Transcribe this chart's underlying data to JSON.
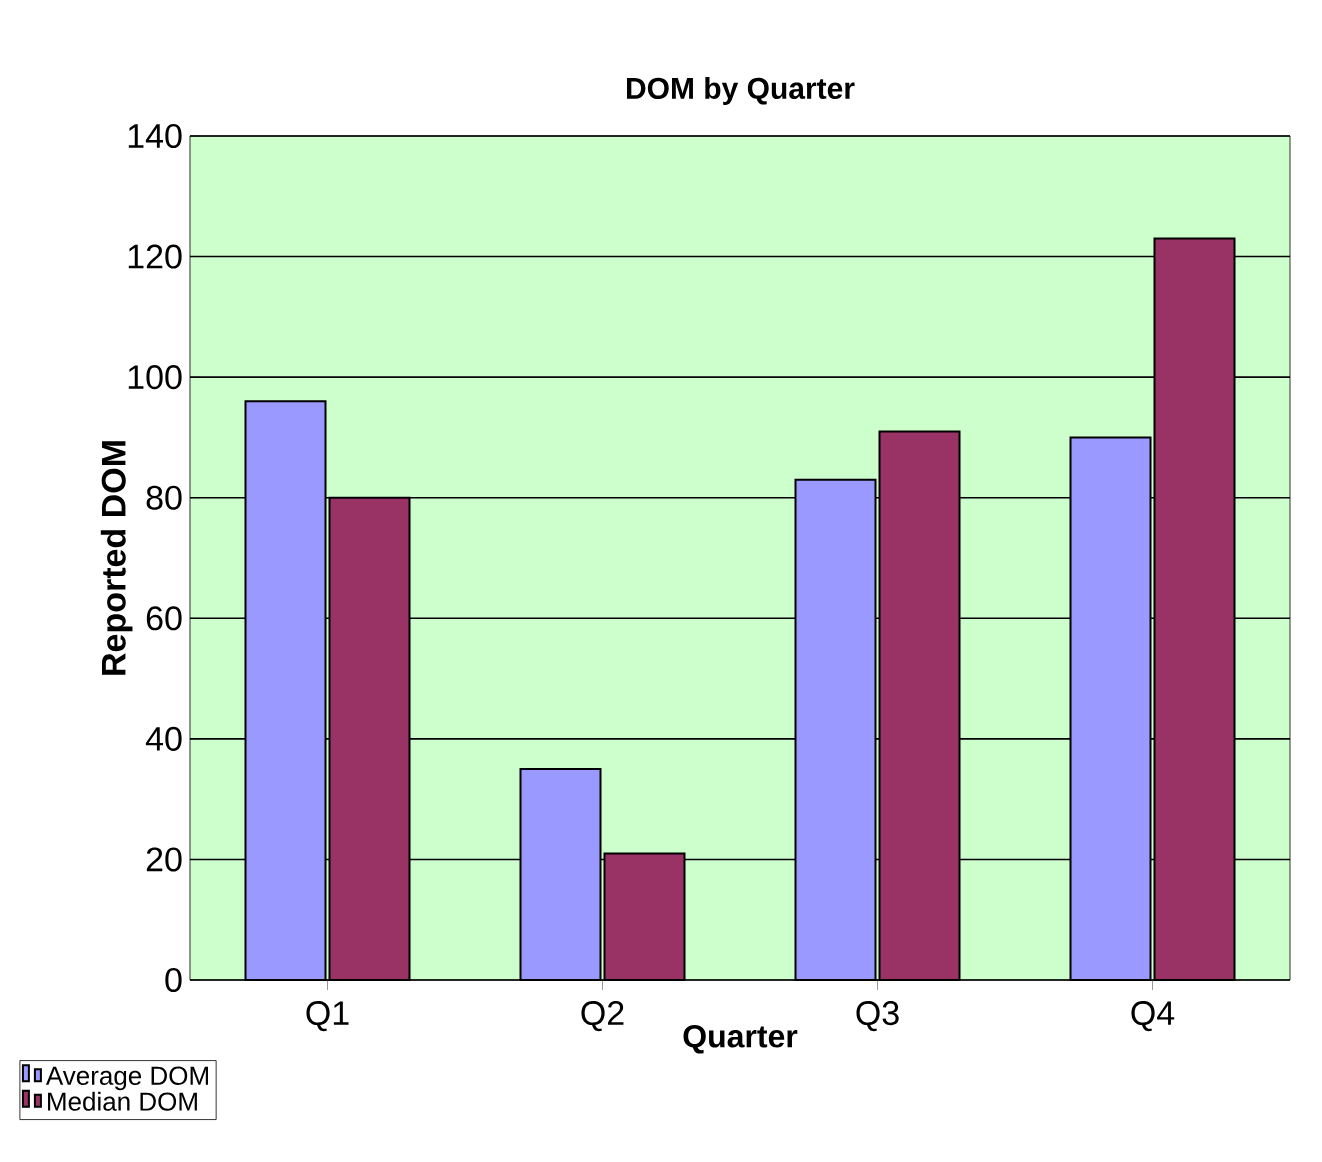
{
  "chart_data": {
    "type": "bar",
    "title": "DOM by Quarter",
    "xlabel": "Quarter",
    "ylabel": "Reported DOM",
    "categories": [
      "Q1",
      "Q2",
      "Q3",
      "Q4"
    ],
    "series": [
      {
        "name": "Average DOM",
        "color": "#9999ff",
        "values": [
          96,
          35,
          83,
          90
        ]
      },
      {
        "name": "Median DOM",
        "color": "#993366",
        "values": [
          80,
          21,
          91,
          123
        ]
      }
    ],
    "ylim": [
      0,
      140
    ],
    "yticks": [
      0,
      20,
      40,
      60,
      80,
      100,
      120,
      140
    ],
    "grid": "y",
    "legend": "bottom left"
  }
}
